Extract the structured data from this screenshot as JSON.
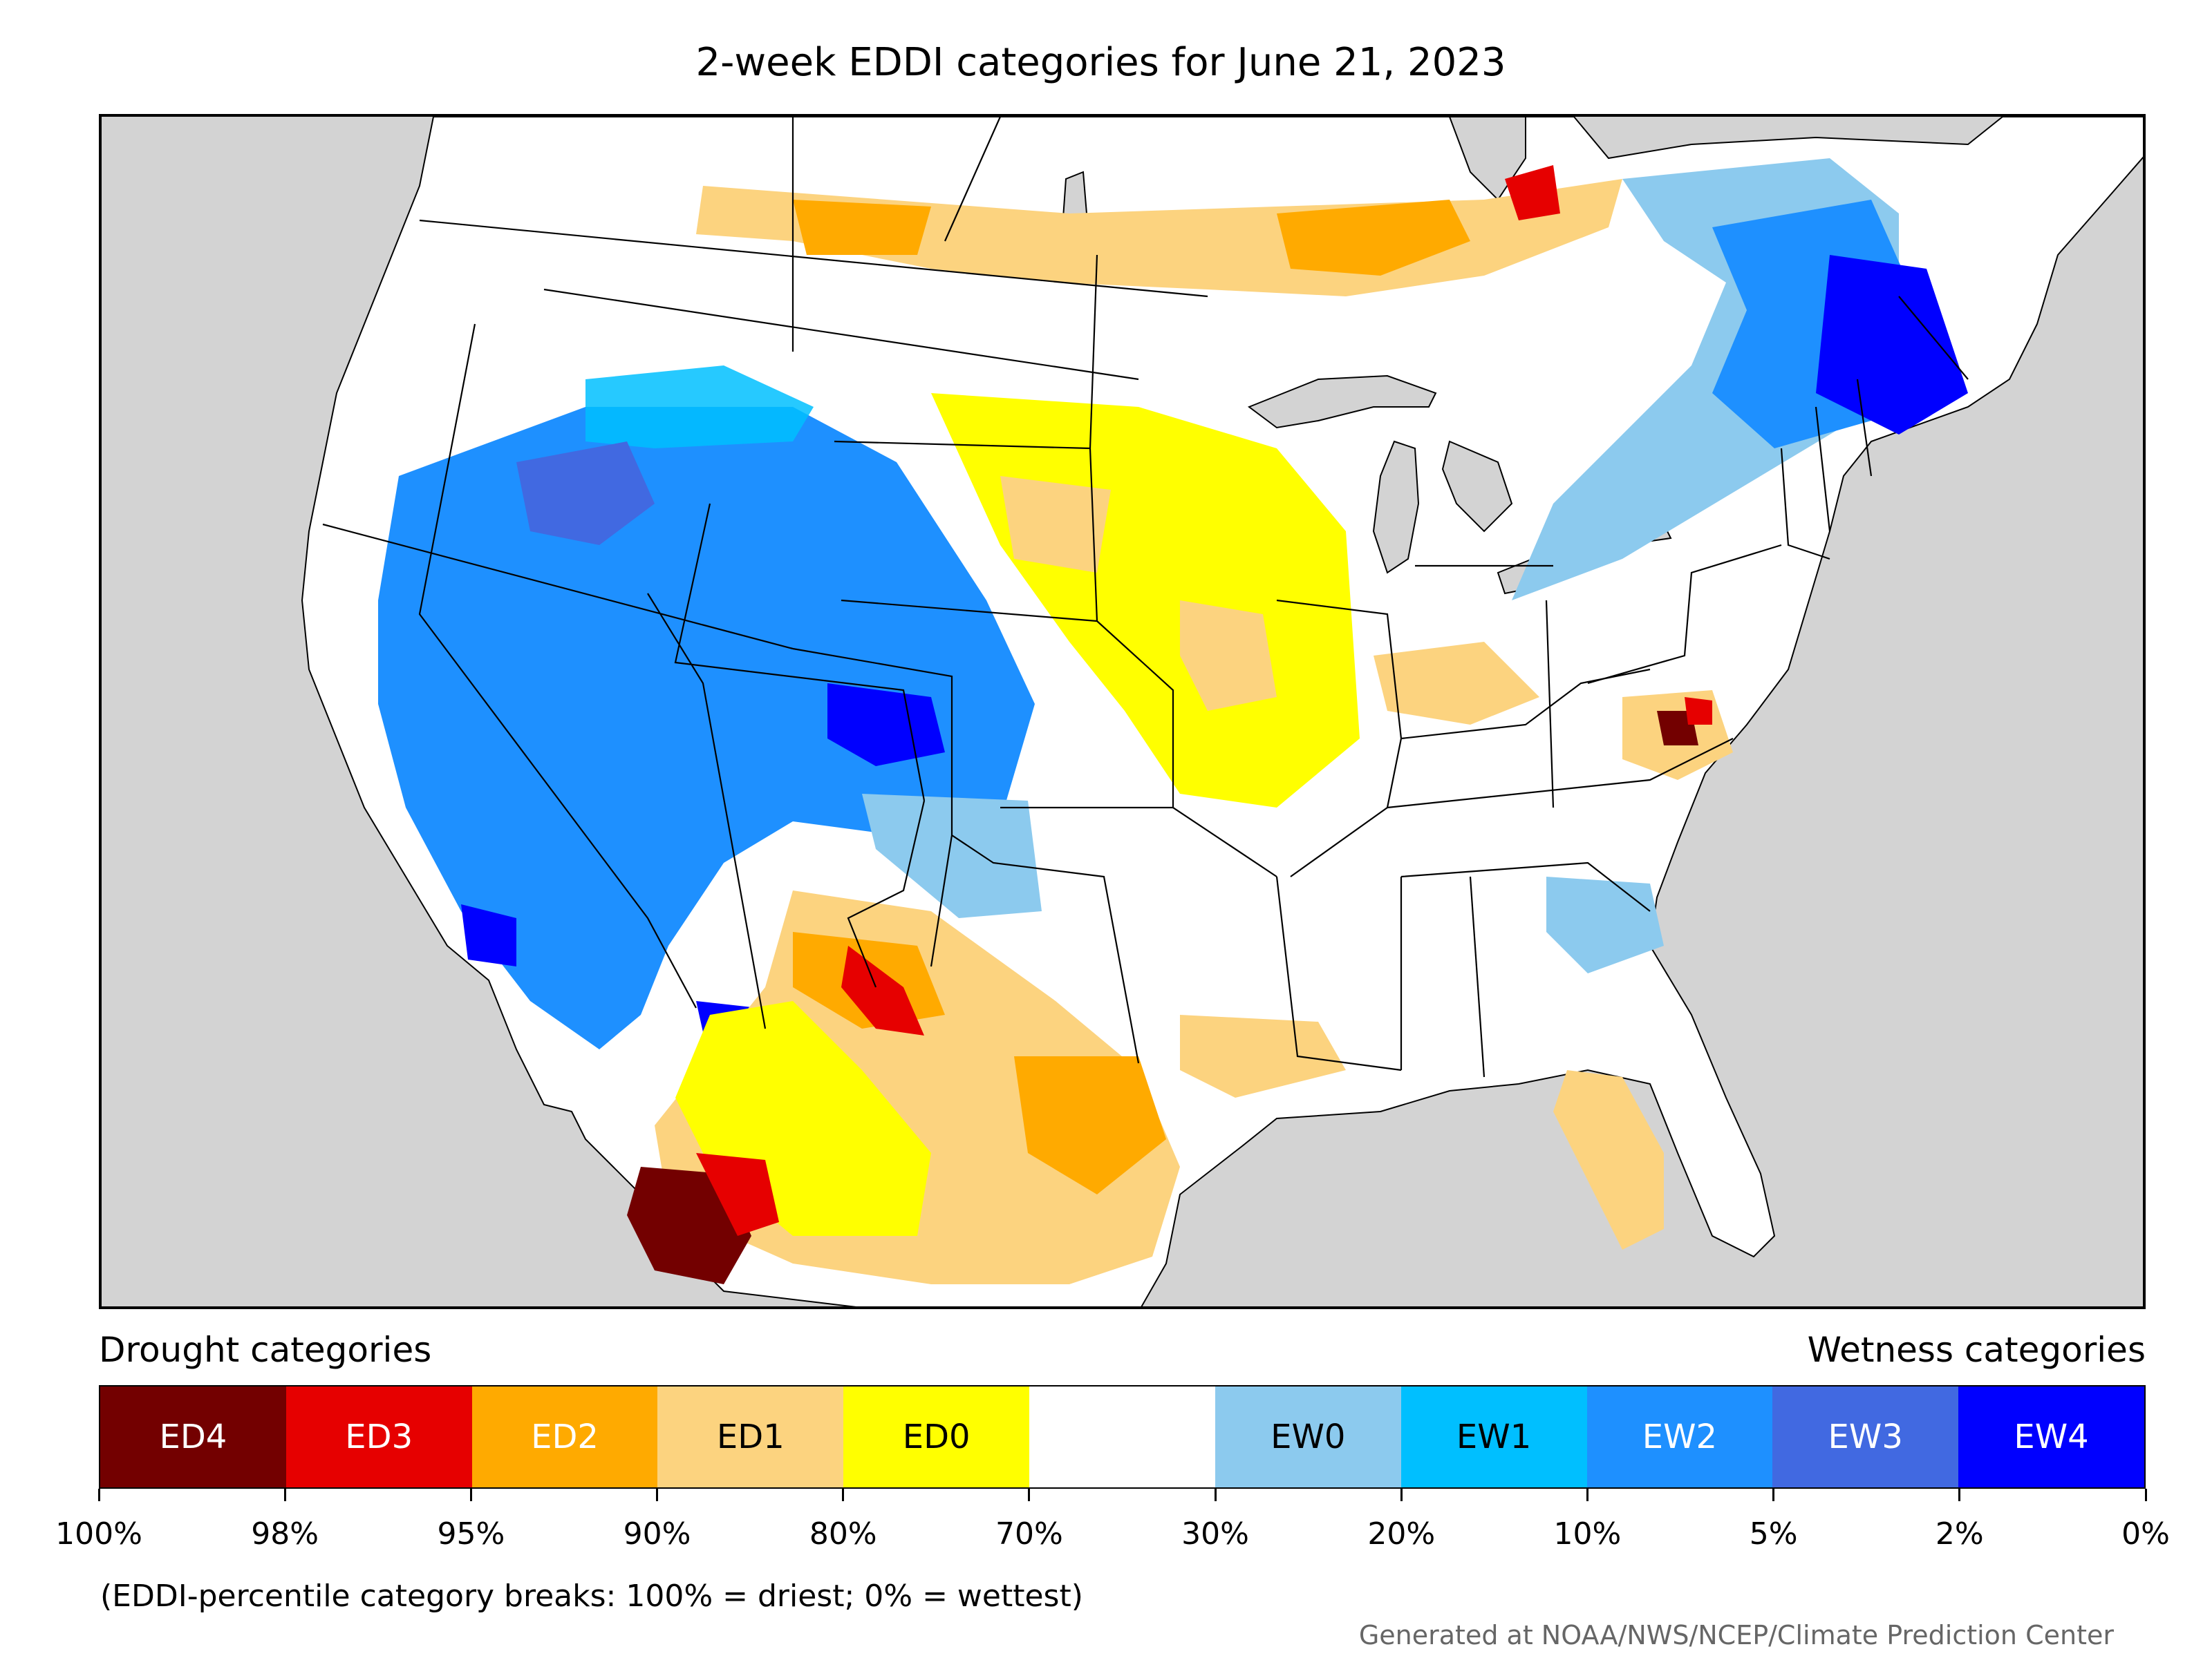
{
  "title": "2-week EDDI categories for June 21, 2023",
  "legend": {
    "drought_heading": "Drought categories",
    "wetness_heading": "Wetness categories",
    "categories": [
      {
        "label": "ED4",
        "color": "#730000",
        "text_color": "#ffffff"
      },
      {
        "label": "ED3",
        "color": "#e60000",
        "text_color": "#ffffff"
      },
      {
        "label": "ED2",
        "color": "#ffaa00",
        "text_color": "#ffffff"
      },
      {
        "label": "ED1",
        "color": "#fcd37f",
        "text_color": "#000000"
      },
      {
        "label": "ED0",
        "color": "#ffff00",
        "text_color": "#000000"
      },
      {
        "label": "",
        "color": "#ffffff",
        "text_color": "#000000"
      },
      {
        "label": "EW0",
        "color": "#8ccaee",
        "text_color": "#000000"
      },
      {
        "label": "EW1",
        "color": "#00bfff",
        "text_color": "#000000"
      },
      {
        "label": "EW2",
        "color": "#1e90ff",
        "text_color": "#ffffff"
      },
      {
        "label": "EW3",
        "color": "#4169e1",
        "text_color": "#ffffff"
      },
      {
        "label": "EW4",
        "color": "#0000ff",
        "text_color": "#ffffff"
      }
    ],
    "tick_labels": [
      "100%",
      "98%",
      "95%",
      "90%",
      "80%",
      "70%",
      "30%",
      "20%",
      "10%",
      "5%",
      "2%",
      "0%"
    ]
  },
  "note": "(EDDI-percentile category breaks: 100% = driest; 0% = wettest)",
  "credit": "Generated at NOAA/NWS/NCEP/Climate Prediction Center",
  "map": {
    "background_color": "#d3d3d3",
    "land_color": "#ffffff",
    "boundary_color": "#000000"
  }
}
